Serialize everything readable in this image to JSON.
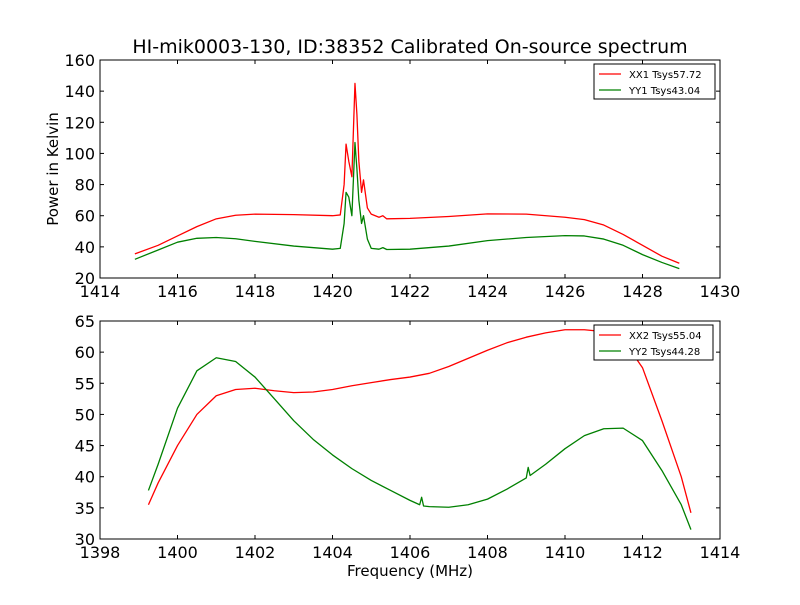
{
  "chart_data": [
    {
      "type": "line",
      "title": "HI-mik0003-130, ID:38352 Calibrated On-source spectrum",
      "xlabel": "",
      "ylabel": "Power in Kelvin",
      "xlim": [
        1414,
        1430
      ],
      "ylim": [
        20,
        160
      ],
      "xticks": [
        1414,
        1416,
        1418,
        1420,
        1422,
        1424,
        1426,
        1428,
        1430
      ],
      "yticks": [
        20,
        40,
        60,
        80,
        100,
        120,
        140,
        160
      ],
      "legend_position": "top-right",
      "series": [
        {
          "name": "XX1 Tsys57.72",
          "color": "#ff0000",
          "points": [
            [
              1414.9,
              35.5
            ],
            [
              1415.5,
              41
            ],
            [
              1416,
              47
            ],
            [
              1416.5,
              53
            ],
            [
              1417,
              58
            ],
            [
              1417.5,
              60.3
            ],
            [
              1418,
              61
            ],
            [
              1419,
              60.7
            ],
            [
              1420,
              60
            ],
            [
              1420.2,
              60.5
            ],
            [
              1420.3,
              80
            ],
            [
              1420.35,
              106
            ],
            [
              1420.42,
              95
            ],
            [
              1420.5,
              85
            ],
            [
              1420.58,
              145
            ],
            [
              1420.63,
              125
            ],
            [
              1420.68,
              95
            ],
            [
              1420.75,
              75
            ],
            [
              1420.8,
              83
            ],
            [
              1420.9,
              65
            ],
            [
              1421,
              61
            ],
            [
              1421.2,
              59
            ],
            [
              1421.3,
              60
            ],
            [
              1421.4,
              58
            ],
            [
              1422,
              58.3
            ],
            [
              1423,
              59.5
            ],
            [
              1424,
              61.2
            ],
            [
              1425,
              61
            ],
            [
              1426,
              59
            ],
            [
              1426.5,
              57.5
            ],
            [
              1427,
              54
            ],
            [
              1427.5,
              48
            ],
            [
              1428,
              41
            ],
            [
              1428.5,
              34
            ],
            [
              1428.95,
              29.5
            ]
          ]
        },
        {
          "name": "YY1 Tsys43.04",
          "color": "#008000",
          "points": [
            [
              1414.9,
              32
            ],
            [
              1415.5,
              38
            ],
            [
              1416,
              43
            ],
            [
              1416.5,
              45.5
            ],
            [
              1417,
              46
            ],
            [
              1417.5,
              45.2
            ],
            [
              1418,
              43.5
            ],
            [
              1419,
              40.5
            ],
            [
              1420,
              38.5
            ],
            [
              1420.2,
              39
            ],
            [
              1420.3,
              55
            ],
            [
              1420.35,
              75
            ],
            [
              1420.42,
              72
            ],
            [
              1420.5,
              60
            ],
            [
              1420.58,
              107
            ],
            [
              1420.63,
              90
            ],
            [
              1420.68,
              70
            ],
            [
              1420.75,
              55
            ],
            [
              1420.8,
              60
            ],
            [
              1420.9,
              45
            ],
            [
              1421,
              39
            ],
            [
              1421.2,
              38.5
            ],
            [
              1421.3,
              39.5
            ],
            [
              1421.4,
              38.3
            ],
            [
              1422,
              38.5
            ],
            [
              1423,
              40.5
            ],
            [
              1424,
              44
            ],
            [
              1425,
              46
            ],
            [
              1426,
              47.2
            ],
            [
              1426.5,
              47
            ],
            [
              1427,
              45
            ],
            [
              1427.5,
              41
            ],
            [
              1428,
              35
            ],
            [
              1428.5,
              30
            ],
            [
              1428.95,
              26
            ]
          ]
        }
      ]
    },
    {
      "type": "line",
      "title": "",
      "xlabel": "Frequency (MHz)",
      "ylabel": "",
      "xlim": [
        1398,
        1414
      ],
      "ylim": [
        30,
        65
      ],
      "xticks": [
        1398,
        1400,
        1402,
        1404,
        1406,
        1408,
        1410,
        1412,
        1414
      ],
      "yticks": [
        30,
        35,
        40,
        45,
        50,
        55,
        60,
        65
      ],
      "legend_position": "top-right",
      "series": [
        {
          "name": "XX2 Tsys55.04",
          "color": "#ff0000",
          "points": [
            [
              1399.25,
              35.5
            ],
            [
              1399.5,
              39
            ],
            [
              1400,
              45
            ],
            [
              1400.5,
              50
            ],
            [
              1401,
              53
            ],
            [
              1401.5,
              54
            ],
            [
              1402,
              54.2
            ],
            [
              1402.5,
              53.8
            ],
            [
              1403,
              53.5
            ],
            [
              1403.5,
              53.6
            ],
            [
              1404,
              54
            ],
            [
              1404.5,
              54.6
            ],
            [
              1405,
              55.1
            ],
            [
              1405.5,
              55.6
            ],
            [
              1406,
              56
            ],
            [
              1406.5,
              56.6
            ],
            [
              1407,
              57.7
            ],
            [
              1407.5,
              59
            ],
            [
              1408,
              60.3
            ],
            [
              1408.5,
              61.5
            ],
            [
              1409,
              62.4
            ],
            [
              1409.5,
              63.1
            ],
            [
              1410,
              63.6
            ],
            [
              1410.5,
              63.6
            ],
            [
              1411,
              63.3
            ],
            [
              1411.5,
              62
            ],
            [
              1412,
              57.5
            ],
            [
              1412.5,
              49
            ],
            [
              1413,
              40
            ],
            [
              1413.25,
              34.2
            ]
          ]
        },
        {
          "name": "YY2 Tsys44.28",
          "color": "#008000",
          "points": [
            [
              1399.25,
              37.8
            ],
            [
              1399.5,
              42
            ],
            [
              1400,
              51
            ],
            [
              1400.5,
              57
            ],
            [
              1401,
              59.1
            ],
            [
              1401.5,
              58.5
            ],
            [
              1402,
              56
            ],
            [
              1402.5,
              52.5
            ],
            [
              1403,
              49
            ],
            [
              1403.5,
              46
            ],
            [
              1404,
              43.5
            ],
            [
              1404.5,
              41.3
            ],
            [
              1405,
              39.4
            ],
            [
              1405.5,
              37.8
            ],
            [
              1406,
              36.2
            ],
            [
              1406.25,
              35.5
            ],
            [
              1406.3,
              36.7
            ],
            [
              1406.35,
              35.3
            ],
            [
              1406.5,
              35.2
            ],
            [
              1407,
              35.1
            ],
            [
              1407.5,
              35.5
            ],
            [
              1408,
              36.4
            ],
            [
              1408.5,
              38
            ],
            [
              1409,
              39.8
            ],
            [
              1409.05,
              41.5
            ],
            [
              1409.1,
              40.2
            ],
            [
              1409.5,
              42
            ],
            [
              1410,
              44.5
            ],
            [
              1410.5,
              46.6
            ],
            [
              1411,
              47.7
            ],
            [
              1411.5,
              47.8
            ],
            [
              1412,
              45.8
            ],
            [
              1412.5,
              41
            ],
            [
              1413,
              35.5
            ],
            [
              1413.25,
              31.5
            ]
          ]
        }
      ]
    }
  ]
}
